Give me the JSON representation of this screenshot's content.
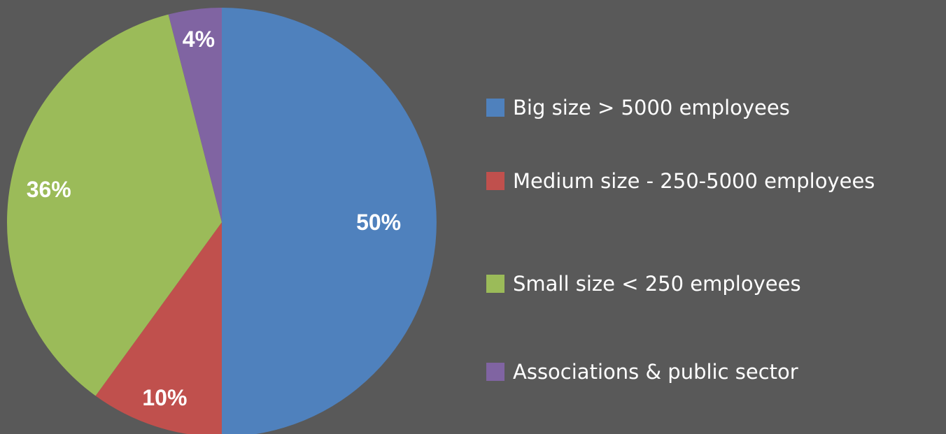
{
  "chart_data": {
    "type": "pie",
    "title": "",
    "start_angle_deg": 0,
    "direction": "clockwise",
    "legend_position": "right",
    "slices": [
      {
        "label": "Big size > 5000 employees",
        "value": 50,
        "display": "50%",
        "color": "#4F81BD"
      },
      {
        "label": "Medium size - 250-5000 employees",
        "value": 10,
        "display": "10%",
        "color": "#C0504D"
      },
      {
        "label": "Small size < 250 employees",
        "value": 36,
        "display": "36%",
        "color": "#9BBB59"
      },
      {
        "label": "Associations & public sector",
        "value": 4,
        "display": "4%",
        "color": "#8064A2"
      }
    ]
  }
}
